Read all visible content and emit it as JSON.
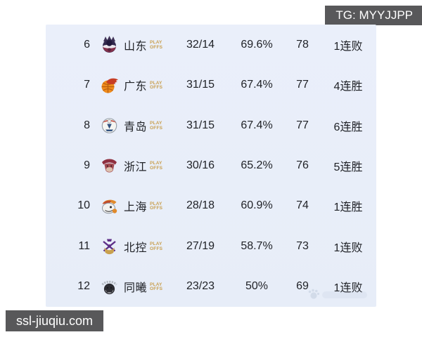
{
  "overlays": {
    "tg_label": "TG: MYYJJPP",
    "site_label": "ssl-jiuqiu.com"
  },
  "table": {
    "badge": {
      "line1": "PLAY",
      "line2": "OFFS"
    },
    "columns": [
      "rank",
      "team",
      "record",
      "win_pct",
      "points",
      "streak"
    ],
    "rows": [
      {
        "rank": "6",
        "team": "山东",
        "logo": "shandong-team-logo",
        "record": "32/14",
        "pct": "69.6%",
        "points": "78",
        "streak": "1连败"
      },
      {
        "rank": "7",
        "team": "广东",
        "logo": "guangdong-team-logo",
        "record": "31/15",
        "pct": "67.4%",
        "points": "77",
        "streak": "4连胜"
      },
      {
        "rank": "8",
        "team": "青岛",
        "logo": "qingdao-team-logo",
        "record": "31/15",
        "pct": "67.4%",
        "points": "77",
        "streak": "6连胜"
      },
      {
        "rank": "9",
        "team": "浙江",
        "logo": "zhejiang-team-logo",
        "record": "30/16",
        "pct": "65.2%",
        "points": "76",
        "streak": "5连胜"
      },
      {
        "rank": "10",
        "team": "上海",
        "logo": "shanghai-team-logo",
        "record": "28/18",
        "pct": "60.9%",
        "points": "74",
        "streak": "1连胜"
      },
      {
        "rank": "11",
        "team": "北控",
        "logo": "beikong-team-logo",
        "record": "27/19",
        "pct": "58.7%",
        "points": "73",
        "streak": "1连败"
      },
      {
        "rank": "12",
        "team": "同曦",
        "logo": "tongxi-team-logo",
        "record": "23/23",
        "pct": "50%",
        "points": "69",
        "streak": "1连败"
      }
    ]
  },
  "colors": {
    "page_bg": "#ffffff",
    "card_bg": "#eaeffa",
    "text": "#1f2126",
    "badge_gold": "#c9a050",
    "overlay_bg": "#58585a",
    "overlay_text": "#ffffff"
  }
}
